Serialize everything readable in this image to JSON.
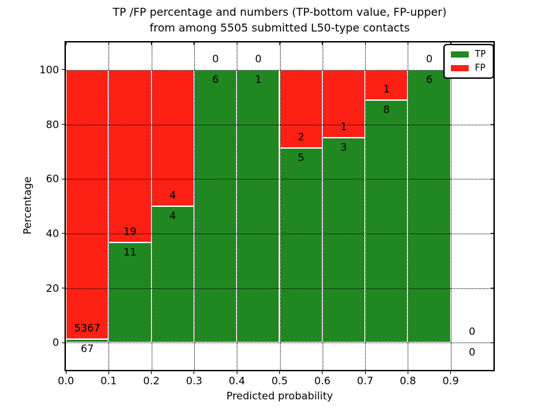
{
  "chart_data": {
    "type": "bar",
    "stacked": true,
    "title_line1": "TP /FP percentage and numbers (TP-bottom value, FP-upper)",
    "title_line2": "from among 5505 submitted L50-type contacts",
    "xlabel": "Predicted probability",
    "ylabel": "Percentage",
    "xlim": [
      0.0,
      1.0
    ],
    "ylim": [
      -10,
      110
    ],
    "grid": "dotted-both-axes-above-bars",
    "x_tick_values": [
      0.0,
      0.1,
      0.2,
      0.3,
      0.4,
      0.5,
      0.6,
      0.7,
      0.8,
      0.9
    ],
    "x_ticks": [
      "0.0",
      "0.1",
      "0.2",
      "0.3",
      "0.4",
      "0.5",
      "0.6",
      "0.7",
      "0.8",
      "0.9"
    ],
    "y_ticks": [
      0,
      20,
      40,
      60,
      80,
      100
    ],
    "bins": [
      {
        "x0": 0.0,
        "x1": 0.1,
        "tp": 67,
        "fp": 5367
      },
      {
        "x0": 0.1,
        "x1": 0.2,
        "tp": 11,
        "fp": 19
      },
      {
        "x0": 0.2,
        "x1": 0.3,
        "tp": 4,
        "fp": 4
      },
      {
        "x0": 0.3,
        "x1": 0.4,
        "tp": 6,
        "fp": 0
      },
      {
        "x0": 0.4,
        "x1": 0.5,
        "tp": 1,
        "fp": 0
      },
      {
        "x0": 0.5,
        "x1": 0.6,
        "tp": 5,
        "fp": 2
      },
      {
        "x0": 0.6,
        "x1": 0.7,
        "tp": 3,
        "fp": 1
      },
      {
        "x0": 0.7,
        "x1": 0.8,
        "tp": 8,
        "fp": 1
      },
      {
        "x0": 0.8,
        "x1": 0.9,
        "tp": 6,
        "fp": 0
      },
      {
        "x0": 0.9,
        "x1": 1.0,
        "tp": 0,
        "fp": 0
      }
    ],
    "colors": {
      "tp": "#218721",
      "fp": "#fc2015",
      "bar_edge": "#ffffff",
      "grid": "#000000"
    },
    "legend": [
      {
        "label": "TP",
        "color": "#218721"
      },
      {
        "label": "FP",
        "color": "#fc2015"
      }
    ],
    "legend_position": "upper right"
  }
}
